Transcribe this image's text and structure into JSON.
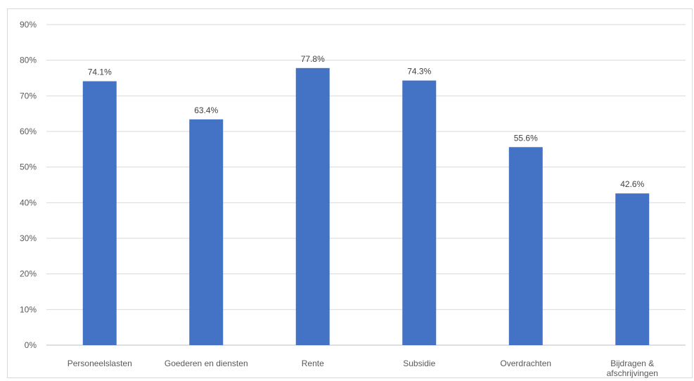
{
  "chart_data": {
    "type": "bar",
    "categories": [
      [
        "Personeelslasten"
      ],
      [
        "Goederen en diensten"
      ],
      [
        "Rente"
      ],
      [
        "Subsidie"
      ],
      [
        "Overdrachten"
      ],
      [
        "Bijdragen &",
        "afschrijvingen"
      ]
    ],
    "values": [
      74.1,
      63.4,
      77.8,
      74.3,
      55.6,
      42.6
    ],
    "data_labels": [
      "74.1%",
      "63.4%",
      "77.8%",
      "74.3%",
      "55.6%",
      "42.6%"
    ],
    "ylim": [
      0,
      90
    ],
    "yticks": [
      "0%",
      "10%",
      "20%",
      "30%",
      "40%",
      "50%",
      "60%",
      "70%",
      "80%",
      "90%"
    ],
    "bar_color": "#4472c4",
    "gridlines": true,
    "legend": "none",
    "title": "",
    "xlabel": "",
    "ylabel": ""
  }
}
